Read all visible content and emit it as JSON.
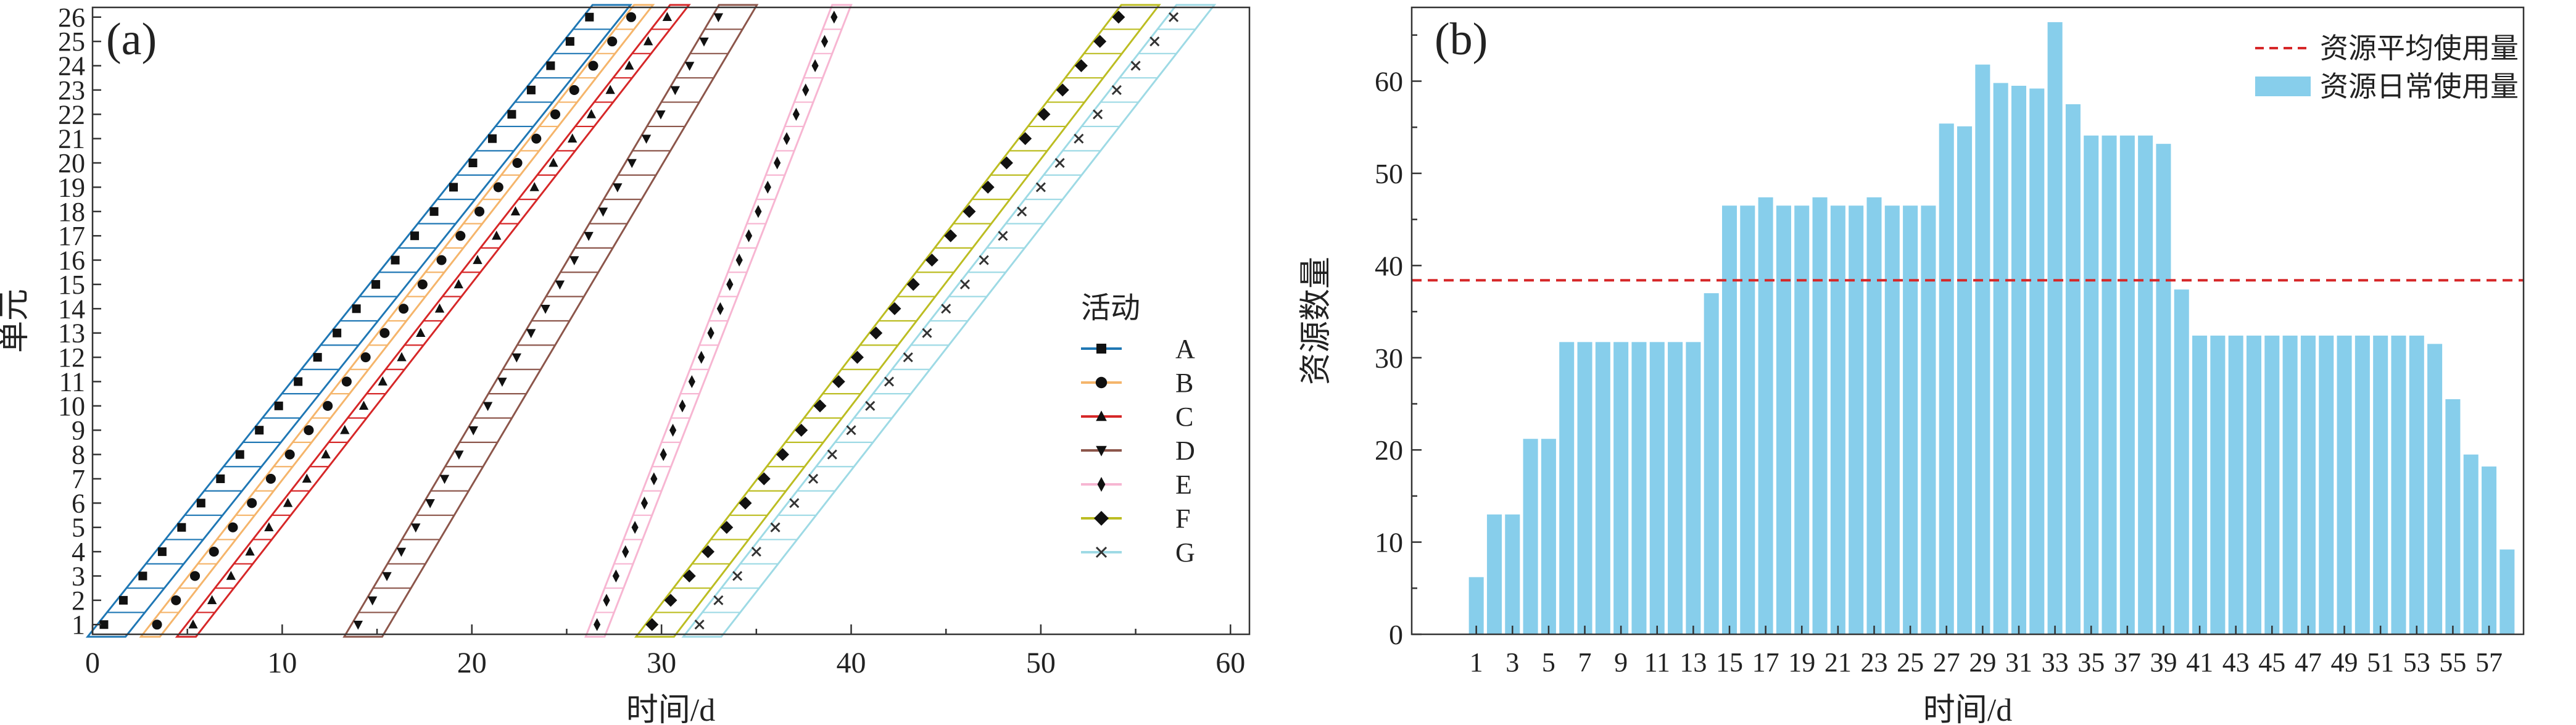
{
  "chart_data": [
    {
      "type": "line",
      "panel_label": "(a)",
      "xlabel": "时间/d",
      "ylabel": "单元",
      "xlim": [
        0,
        61
      ],
      "ylim": [
        0.6,
        26.4
      ],
      "x_ticks": [
        0,
        10,
        20,
        30,
        40,
        50,
        60
      ],
      "y_ticks": [
        1,
        2,
        3,
        4,
        5,
        6,
        7,
        8,
        9,
        10,
        11,
        12,
        13,
        14,
        15,
        16,
        17,
        18,
        19,
        20,
        21,
        22,
        23,
        24,
        25,
        26
      ],
      "legend_title": "活动",
      "legend_position": "right",
      "units": [
        1,
        26
      ],
      "series": [
        {
          "name": "A",
          "color": "#1f77b4",
          "marker": "square",
          "start_x": 0.6,
          "end_x": 26.2,
          "duration": 2
        },
        {
          "name": "B",
          "color": "#f5b56b",
          "marker": "circle",
          "start_x": 3.4,
          "end_x": 28.4,
          "duration": 1
        },
        {
          "name": "C",
          "color": "#d62728",
          "marker": "triangle-up",
          "start_x": 5.3,
          "end_x": 30.3,
          "duration": 1
        },
        {
          "name": "D",
          "color": "#8c564b",
          "marker": "triangle-down",
          "start_x": 14,
          "end_x": 33,
          "duration": 2
        },
        {
          "name": "E",
          "color": "#f7b6d2",
          "marker": "diamond",
          "start_x": 26.6,
          "end_x": 39.1,
          "duration": 1
        },
        {
          "name": "F",
          "color": "#bcbd22",
          "marker": "diamond-large",
          "start_x": 29.5,
          "end_x": 54.1,
          "duration": 2
        },
        {
          "name": "G",
          "color": "#9edae5",
          "marker": "x",
          "start_x": 32,
          "end_x": 57,
          "duration": 2
        }
      ]
    },
    {
      "type": "bar",
      "panel_label": "(b)",
      "xlabel": "时间/d",
      "ylabel": "资源数量",
      "ylim": [
        0,
        68
      ],
      "y_ticks": [
        0,
        10,
        20,
        30,
        40,
        50,
        60
      ],
      "legend_position": "top-right",
      "categories": [
        "1",
        "2",
        "3",
        "4",
        "5",
        "6",
        "7",
        "8",
        "9",
        "10",
        "11",
        "12",
        "13",
        "14",
        "15",
        "16",
        "17",
        "18",
        "19",
        "20",
        "21",
        "22",
        "23",
        "24",
        "25",
        "26",
        "27",
        "28",
        "29",
        "30",
        "31",
        "32",
        "33",
        "34",
        "35",
        "36",
        "37",
        "38",
        "39",
        "40",
        "41",
        "42",
        "43",
        "44",
        "45",
        "46",
        "47",
        "48",
        "49",
        "50",
        "51",
        "52",
        "53",
        "54",
        "55",
        "56",
        "57",
        "58"
      ],
      "x_tick_labels": [
        "1",
        "3",
        "5",
        "7",
        "9",
        "11",
        "13",
        "15",
        "17",
        "19",
        "21",
        "23",
        "25",
        "27",
        "29",
        "31",
        "33",
        "35",
        "37",
        "39",
        "41",
        "43",
        "45",
        "47",
        "49",
        "51",
        "53",
        "55",
        "57"
      ],
      "values": [
        6.2,
        13,
        13,
        21.2,
        21.2,
        31.7,
        31.7,
        31.7,
        31.7,
        31.7,
        31.7,
        31.7,
        31.7,
        37,
        46.5,
        46.5,
        47.4,
        46.5,
        46.5,
        47.4,
        46.5,
        46.5,
        47.4,
        46.5,
        46.5,
        46.5,
        55.4,
        55.1,
        61.8,
        59.8,
        59.5,
        59.2,
        66.4,
        57.5,
        54.1,
        54.1,
        54.1,
        54.1,
        53.2,
        37.4,
        32.4,
        32.4,
        32.4,
        32.4,
        32.4,
        32.4,
        32.4,
        32.4,
        32.4,
        32.4,
        32.4,
        32.4,
        32.4,
        31.5,
        25.5,
        19.5,
        18.2,
        9.2
      ],
      "bar_color": "#87ceeb",
      "average": 38.4,
      "average_color": "#d62728",
      "series": [
        {
          "name": "资源平均使用量",
          "kind": "dashed-line"
        },
        {
          "name": "资源日常使用量",
          "kind": "bar"
        }
      ]
    }
  ]
}
